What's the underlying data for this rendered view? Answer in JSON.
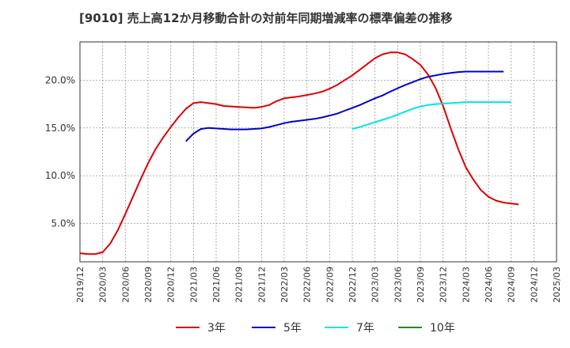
{
  "chart_data": {
    "type": "line",
    "title": "[9010]  売上高12か月移動合計の対前年同期増減率の標準偏差の推移",
    "xlabel": "",
    "ylabel": "",
    "x_ticks": [
      "2019/12",
      "2020/03",
      "2020/06",
      "2020/09",
      "2020/12",
      "2021/03",
      "2021/06",
      "2021/09",
      "2021/12",
      "2022/03",
      "2022/06",
      "2022/09",
      "2022/12",
      "2023/03",
      "2023/06",
      "2023/09",
      "2023/12",
      "2024/03",
      "2024/06",
      "2024/09",
      "2024/12",
      "2025/03"
    ],
    "y_ticks": [
      {
        "value": 5,
        "label": "5.0%"
      },
      {
        "value": 10,
        "label": "10.0%"
      },
      {
        "value": 15,
        "label": "15.0%"
      },
      {
        "value": 20,
        "label": "20.0%"
      }
    ],
    "ylim": [
      1,
      24
    ],
    "grid": true,
    "legend_position": "bottom",
    "series": [
      {
        "name": "3年",
        "color": "#dd0000",
        "start": "2019/12",
        "values": [
          1.9,
          1.8,
          1.8,
          2.0,
          2.9,
          4.3,
          6.0,
          7.8,
          9.6,
          11.3,
          12.8,
          14.0,
          15.1,
          16.1,
          17.0,
          17.6,
          17.7,
          17.6,
          17.5,
          17.3,
          17.25,
          17.2,
          17.15,
          17.1,
          17.2,
          17.4,
          17.8,
          18.1,
          18.2,
          18.3,
          18.45,
          18.6,
          18.8,
          19.1,
          19.5,
          20.0,
          20.5,
          21.1,
          21.7,
          22.3,
          22.7,
          22.9,
          22.9,
          22.7,
          22.2,
          21.6,
          20.6,
          19.2,
          17.3,
          15.0,
          12.8,
          10.9,
          9.6,
          8.5,
          7.8,
          7.4,
          7.2,
          7.1,
          7.0
        ]
      },
      {
        "name": "5年",
        "color": "#0000cc",
        "start": "2021/02",
        "values": [
          13.6,
          14.4,
          14.9,
          15.0,
          14.95,
          14.9,
          14.85,
          14.85,
          14.85,
          14.9,
          14.95,
          15.1,
          15.3,
          15.5,
          15.65,
          15.75,
          15.85,
          15.95,
          16.1,
          16.3,
          16.5,
          16.8,
          17.1,
          17.4,
          17.75,
          18.1,
          18.4,
          18.8,
          19.15,
          19.5,
          19.8,
          20.1,
          20.35,
          20.5,
          20.65,
          20.75,
          20.85,
          20.9,
          20.9,
          20.9,
          20.9,
          20.9,
          20.9
        ]
      },
      {
        "name": "7年",
        "color": "#00e5e5",
        "start": "2022/12",
        "values": [
          14.9,
          15.1,
          15.35,
          15.6,
          15.85,
          16.1,
          16.4,
          16.7,
          17.0,
          17.25,
          17.4,
          17.5,
          17.55,
          17.6,
          17.65,
          17.7,
          17.7,
          17.7,
          17.7,
          17.7,
          17.7,
          17.7
        ]
      },
      {
        "name": "10年",
        "color": "#228b22",
        "start": "",
        "values": []
      }
    ]
  }
}
